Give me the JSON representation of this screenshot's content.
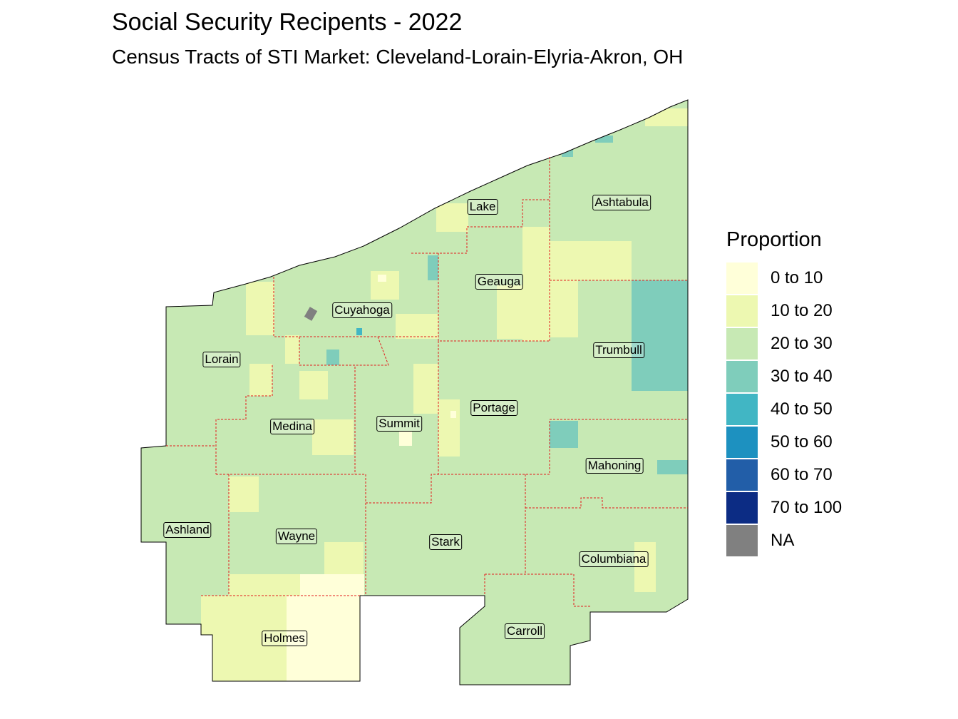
{
  "title": "Social Security Recipents - 2022",
  "subtitle": "Census Tracts of STI Market: Cleveland-Lorain-Elyria-Akron, OH",
  "legend": {
    "title": "Proportion",
    "items": [
      {
        "label": "0 to 10",
        "color": "#ffffd9"
      },
      {
        "label": "10 to 20",
        "color": "#edf8b1"
      },
      {
        "label": "20 to 30",
        "color": "#c7e9b4"
      },
      {
        "label": "30 to 40",
        "color": "#7fcdbb"
      },
      {
        "label": "40 to 50",
        "color": "#41b6c4"
      },
      {
        "label": "50 to 60",
        "color": "#1d91c0"
      },
      {
        "label": "60 to 70",
        "color": "#225ea8"
      },
      {
        "label": "70 to 100",
        "color": "#0c2c84"
      },
      {
        "label": "NA",
        "color": "#808080"
      }
    ]
  },
  "counties": [
    {
      "name": "Lake"
    },
    {
      "name": "Ashtabula"
    },
    {
      "name": "Geauga"
    },
    {
      "name": "Cuyahoga"
    },
    {
      "name": "Trumbull"
    },
    {
      "name": "Lorain"
    },
    {
      "name": "Portage"
    },
    {
      "name": "Summit"
    },
    {
      "name": "Medina"
    },
    {
      "name": "Mahoning"
    },
    {
      "name": "Ashland"
    },
    {
      "name": "Wayne"
    },
    {
      "name": "Stark"
    },
    {
      "name": "Columbiana"
    },
    {
      "name": "Holmes"
    },
    {
      "name": "Carroll"
    }
  ]
}
